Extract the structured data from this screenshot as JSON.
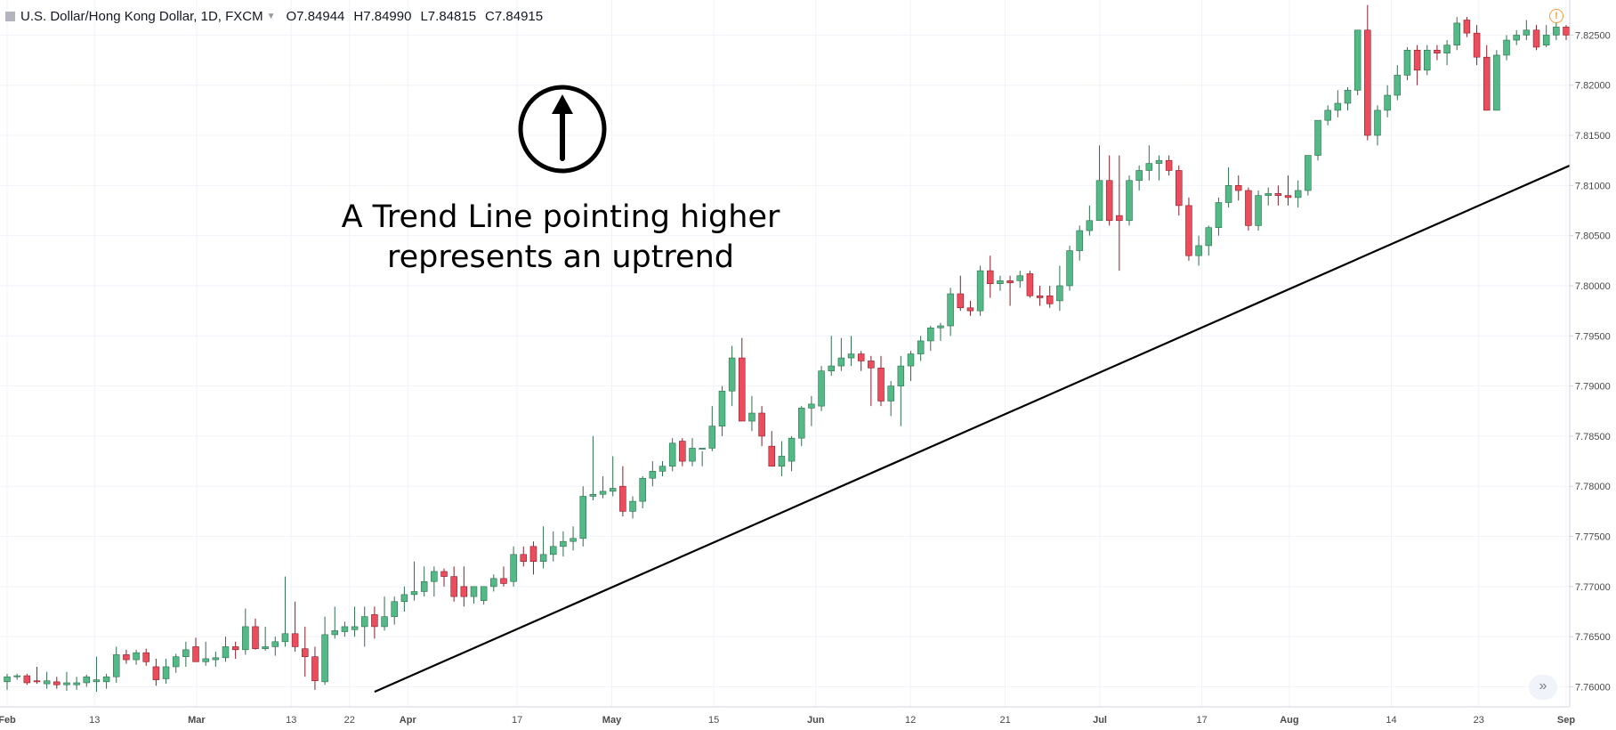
{
  "header": {
    "symbol": "U.S. Dollar/Hong Kong Dollar, 1D, FXCM",
    "open": "O7.84944",
    "high": "H7.84990",
    "low": "L7.84815",
    "close": "C7.84915"
  },
  "annotation": {
    "line1": "A Trend Line pointing higher",
    "line2": "represents an uptrend",
    "icon": "up-arrow-circle-icon"
  },
  "icons": {
    "alert": "alert-icon",
    "scroll": "scroll-right-icon"
  },
  "colors": {
    "up": "#53b987",
    "down": "#eb4d5c",
    "up_border": "#2f6e4e",
    "down_border": "#8a1e29",
    "trendline": "#000000",
    "grid": "#f0f3fa"
  },
  "chart_data": {
    "type": "candlestick",
    "ylim": [
      7.758,
      7.8285
    ],
    "y_ticks": [
      "7.76000",
      "7.76500",
      "7.77000",
      "7.77500",
      "7.78000",
      "7.78500",
      "7.79000",
      "7.79500",
      "7.80000",
      "7.80500",
      "7.81000",
      "7.81500",
      "7.82000",
      "7.82500"
    ],
    "x_ticks": [
      "Feb",
      "13",
      "Mar",
      "13",
      "22",
      "Apr",
      "17",
      "May",
      "15",
      "Jun",
      "12",
      "21",
      "Jul",
      "17",
      "Aug",
      "14",
      "23",
      "Sep"
    ],
    "trend_line": {
      "from_index": 37,
      "from_value": 7.7595,
      "to_index": 170,
      "to_value": 7.8175
    },
    "candles": [
      [
        7.7605,
        7.7613,
        7.7597,
        7.761
      ],
      [
        7.761,
        7.7613,
        7.7607,
        7.7611
      ],
      [
        7.7611,
        7.7613,
        7.7602,
        7.7604
      ],
      [
        7.7606,
        7.762,
        7.7603,
        7.7605
      ],
      [
        7.7603,
        7.7615,
        7.7598,
        7.7606
      ],
      [
        7.7605,
        7.761,
        7.7598,
        7.7602
      ],
      [
        7.7602,
        7.7615,
        7.7596,
        7.7604
      ],
      [
        7.7602,
        7.761,
        7.7597,
        7.7604
      ],
      [
        7.7604,
        7.7612,
        7.76,
        7.761
      ],
      [
        7.7605,
        7.763,
        7.7595,
        7.7607
      ],
      [
        7.7605,
        7.7613,
        7.7598,
        7.761
      ],
      [
        7.761,
        7.764,
        7.7604,
        7.7632
      ],
      [
        7.7632,
        7.7637,
        7.7623,
        7.7627
      ],
      [
        7.7627,
        7.7637,
        7.7622,
        7.7634
      ],
      [
        7.7634,
        7.7638,
        7.7621,
        7.7625
      ],
      [
        7.762,
        7.7628,
        7.7601,
        7.7607
      ],
      [
        7.7608,
        7.7628,
        7.7603,
        7.762
      ],
      [
        7.762,
        7.7633,
        7.7614,
        7.763
      ],
      [
        7.763,
        7.7645,
        7.762,
        7.7637
      ],
      [
        7.764,
        7.7649,
        7.7631,
        7.7625
      ],
      [
        7.7625,
        7.7645,
        7.7621,
        7.7628
      ],
      [
        7.7627,
        7.7635,
        7.762,
        7.7629
      ],
      [
        7.7629,
        7.765,
        7.7625,
        7.764
      ],
      [
        7.764,
        7.7645,
        7.7628,
        7.7637
      ],
      [
        7.7637,
        7.7678,
        7.7632,
        7.766
      ],
      [
        7.766,
        7.7668,
        7.7637,
        7.7638
      ],
      [
        7.7638,
        7.766,
        7.7636,
        7.764
      ],
      [
        7.764,
        7.765,
        7.7631,
        7.7645
      ],
      [
        7.7645,
        7.771,
        7.764,
        7.7653
      ],
      [
        7.7653,
        7.7685,
        7.7635,
        7.764
      ],
      [
        7.7638,
        7.766,
        7.761,
        7.763
      ],
      [
        7.763,
        7.764,
        7.7597,
        7.7606
      ],
      [
        7.7605,
        7.767,
        7.7602,
        7.7652
      ],
      [
        7.7652,
        7.768,
        7.7648,
        7.7656
      ],
      [
        7.7655,
        7.7665,
        7.765,
        7.766
      ],
      [
        7.7657,
        7.768,
        7.765,
        7.766
      ],
      [
        7.766,
        7.768,
        7.764,
        7.767
      ],
      [
        7.7672,
        7.768,
        7.7648,
        7.766
      ],
      [
        7.766,
        7.769,
        7.7656,
        7.767
      ],
      [
        7.767,
        7.769,
        7.7662,
        7.7685
      ],
      [
        7.7685,
        7.77,
        7.7675,
        7.7692
      ],
      [
        7.7692,
        7.7725,
        7.7686,
        7.7695
      ],
      [
        7.7695,
        7.772,
        7.769,
        7.7705
      ],
      [
        7.7705,
        7.772,
        7.769,
        7.7715
      ],
      [
        7.7715,
        7.7718,
        7.77,
        7.771
      ],
      [
        7.771,
        7.772,
        7.7685,
        7.769
      ],
      [
        7.77,
        7.772,
        7.768,
        7.769
      ],
      [
        7.769,
        7.77,
        7.7683,
        7.77
      ],
      [
        7.7686,
        7.77,
        7.7682,
        7.77
      ],
      [
        7.77,
        7.7712,
        7.7695,
        7.7708
      ],
      [
        7.7708,
        7.772,
        7.77,
        7.7703
      ],
      [
        7.7705,
        7.774,
        7.77,
        7.7732
      ],
      [
        7.7732,
        7.774,
        7.772,
        7.7725
      ],
      [
        7.774,
        7.7745,
        7.7712,
        7.7725
      ],
      [
        7.7725,
        7.776,
        7.7718,
        7.7732
      ],
      [
        7.7732,
        7.7755,
        7.7725,
        7.774
      ],
      [
        7.774,
        7.7755,
        7.773,
        7.7745
      ],
      [
        7.7745,
        7.776,
        7.7736,
        7.7748
      ],
      [
        7.7748,
        7.78,
        7.774,
        7.779
      ],
      [
        7.779,
        7.785,
        7.7786,
        7.7792
      ],
      [
        7.7792,
        7.781,
        7.7788,
        7.7795
      ],
      [
        7.7795,
        7.783,
        7.779,
        7.7798
      ],
      [
        7.78,
        7.782,
        7.777,
        7.7775
      ],
      [
        7.7775,
        7.779,
        7.7768,
        7.7785
      ],
      [
        7.7785,
        7.781,
        7.7778,
        7.7808
      ],
      [
        7.7808,
        7.7825,
        7.78,
        7.7815
      ],
      [
        7.7815,
        7.7825,
        7.781,
        7.782
      ],
      [
        7.782,
        7.7848,
        7.7815,
        7.7843
      ],
      [
        7.7845,
        7.7848,
        7.782,
        7.7825
      ],
      [
        7.7825,
        7.7848,
        7.782,
        7.7838
      ],
      [
        7.7838,
        7.7835,
        7.782,
        7.7838
      ],
      [
        7.7838,
        7.788,
        7.7835,
        7.786
      ],
      [
        7.786,
        7.79,
        7.785,
        7.7895
      ],
      [
        7.7895,
        7.794,
        7.788,
        7.7928
      ],
      [
        7.7928,
        7.7948,
        7.787,
        7.7865
      ],
      [
        7.7865,
        7.789,
        7.7855,
        7.7873
      ],
      [
        7.7873,
        7.788,
        7.784,
        7.785
      ],
      [
        7.784,
        7.7855,
        7.782,
        7.782
      ],
      [
        7.782,
        7.7845,
        7.781,
        7.783
      ],
      [
        7.7825,
        7.785,
        7.7815,
        7.7848
      ],
      [
        7.7848,
        7.788,
        7.784,
        7.7878
      ],
      [
        7.7878,
        7.789,
        7.786,
        7.7882
      ],
      [
        7.788,
        7.792,
        7.7875,
        7.7915
      ],
      [
        7.7915,
        7.795,
        7.791,
        7.792
      ],
      [
        7.792,
        7.7948,
        7.7915,
        7.7928
      ],
      [
        7.7928,
        7.795,
        7.792,
        7.7932
      ],
      [
        7.7932,
        7.7935,
        7.7915,
        7.7925
      ],
      [
        7.7925,
        7.793,
        7.788,
        7.7918
      ],
      [
        7.7918,
        7.793,
        7.788,
        7.7885
      ],
      [
        7.7885,
        7.7905,
        7.787,
        7.79
      ],
      [
        7.79,
        7.793,
        7.786,
        7.792
      ],
      [
        7.792,
        7.7935,
        7.7905,
        7.7932
      ],
      [
        7.7932,
        7.795,
        7.7925,
        7.7945
      ],
      [
        7.7945,
        7.796,
        7.7935,
        7.7958
      ],
      [
        7.7958,
        7.7963,
        7.7945,
        7.796
      ],
      [
        7.796,
        7.7998,
        7.795,
        7.7992
      ],
      [
        7.7992,
        7.801,
        7.7975,
        7.7978
      ],
      [
        7.7978,
        7.7985,
        7.797,
        7.7975
      ],
      [
        7.7975,
        7.802,
        7.797,
        7.8015
      ],
      [
        7.8015,
        7.803,
        7.7988,
        7.8002
      ],
      [
        7.8002,
        7.801,
        7.7995,
        7.8005
      ],
      [
        7.8005,
        7.801,
        7.798,
        7.8003
      ],
      [
        7.8005,
        7.8015,
        7.7998,
        7.801
      ],
      [
        7.8012,
        7.8015,
        7.7988,
        7.799
      ],
      [
        7.799,
        7.8,
        7.798,
        7.7988
      ],
      [
        7.799,
        7.8,
        7.7978,
        7.7982
      ],
      [
        7.7985,
        7.802,
        7.7975,
        7.8
      ],
      [
        7.8,
        7.804,
        7.7995,
        7.8035
      ],
      [
        7.8035,
        7.806,
        7.8025,
        7.8055
      ],
      [
        7.8055,
        7.808,
        7.805,
        7.8065
      ],
      [
        7.8065,
        7.814,
        7.8065,
        7.8105
      ],
      [
        7.8105,
        7.813,
        7.806,
        7.8065
      ],
      [
        7.807,
        7.813,
        7.8015,
        7.8065
      ],
      [
        7.8065,
        7.811,
        7.806,
        7.8105
      ],
      [
        7.8105,
        7.812,
        7.8095,
        7.8115
      ],
      [
        7.8115,
        7.814,
        7.8105,
        7.8122
      ],
      [
        7.8122,
        7.813,
        7.8105,
        7.8125
      ],
      [
        7.8125,
        7.813,
        7.811,
        7.8115
      ],
      [
        7.8115,
        7.812,
        7.807,
        7.808
      ],
      [
        7.808,
        7.8088,
        7.8025,
        7.803
      ],
      [
        7.803,
        7.805,
        7.802,
        7.804
      ],
      [
        7.804,
        7.806,
        7.803,
        7.8058
      ],
      [
        7.8058,
        7.8088,
        7.805,
        7.8083
      ],
      [
        7.8083,
        7.8118,
        7.8078,
        7.81
      ],
      [
        7.81,
        7.811,
        7.8085,
        7.8095
      ],
      [
        7.8095,
        7.8098,
        7.8055,
        7.806
      ],
      [
        7.806,
        7.8095,
        7.8055,
        7.809
      ],
      [
        7.809,
        7.8098,
        7.808,
        7.8092
      ],
      [
        7.8092,
        7.81,
        7.808,
        7.809
      ],
      [
        7.809,
        7.811,
        7.808,
        7.8088
      ],
      [
        7.8088,
        7.8105,
        7.8078,
        7.8095
      ],
      [
        7.8095,
        7.813,
        7.809,
        7.813
      ],
      [
        7.813,
        7.816,
        7.8125,
        7.8165
      ],
      [
        7.8165,
        7.818,
        7.816,
        7.8175
      ],
      [
        7.8175,
        7.8195,
        7.8168,
        7.8182
      ],
      [
        7.8182,
        7.8198,
        7.8175,
        7.8195
      ],
      [
        7.8195,
        7.8255,
        7.819,
        7.8255
      ],
      [
        7.8255,
        7.828,
        7.8145,
        7.815
      ],
      [
        7.815,
        7.818,
        7.814,
        7.8175
      ],
      [
        7.8175,
        7.82,
        7.8168,
        7.819
      ],
      [
        7.819,
        7.822,
        7.8185,
        7.821
      ],
      [
        7.821,
        7.8238,
        7.8205,
        7.8235
      ],
      [
        7.8235,
        7.824,
        7.82,
        7.8215
      ],
      [
        7.8215,
        7.824,
        7.821,
        7.8235
      ],
      [
        7.8235,
        7.824,
        7.8225,
        7.8232
      ],
      [
        7.8232,
        7.8245,
        7.822,
        7.824
      ],
      [
        7.824,
        7.8268,
        7.8235,
        7.8262
      ],
      [
        7.8265,
        7.8268,
        7.8248,
        7.8252
      ],
      [
        7.8252,
        7.826,
        7.822,
        7.8228
      ],
      [
        7.8228,
        7.824,
        7.8175,
        7.8175
      ],
      [
        7.8175,
        7.8235,
        7.8175,
        7.823
      ],
      [
        7.823,
        7.825,
        7.8225,
        7.8245
      ],
      [
        7.8245,
        7.8255,
        7.824,
        7.825
      ],
      [
        7.825,
        7.8265,
        7.8245,
        7.8255
      ],
      [
        7.8255,
        7.826,
        7.8235,
        7.8238
      ],
      [
        7.824,
        7.826,
        7.8238,
        7.825
      ],
      [
        7.825,
        7.8262,
        7.8245,
        7.8258
      ],
      [
        7.8258,
        7.826,
        7.8245,
        7.825
      ]
    ]
  }
}
